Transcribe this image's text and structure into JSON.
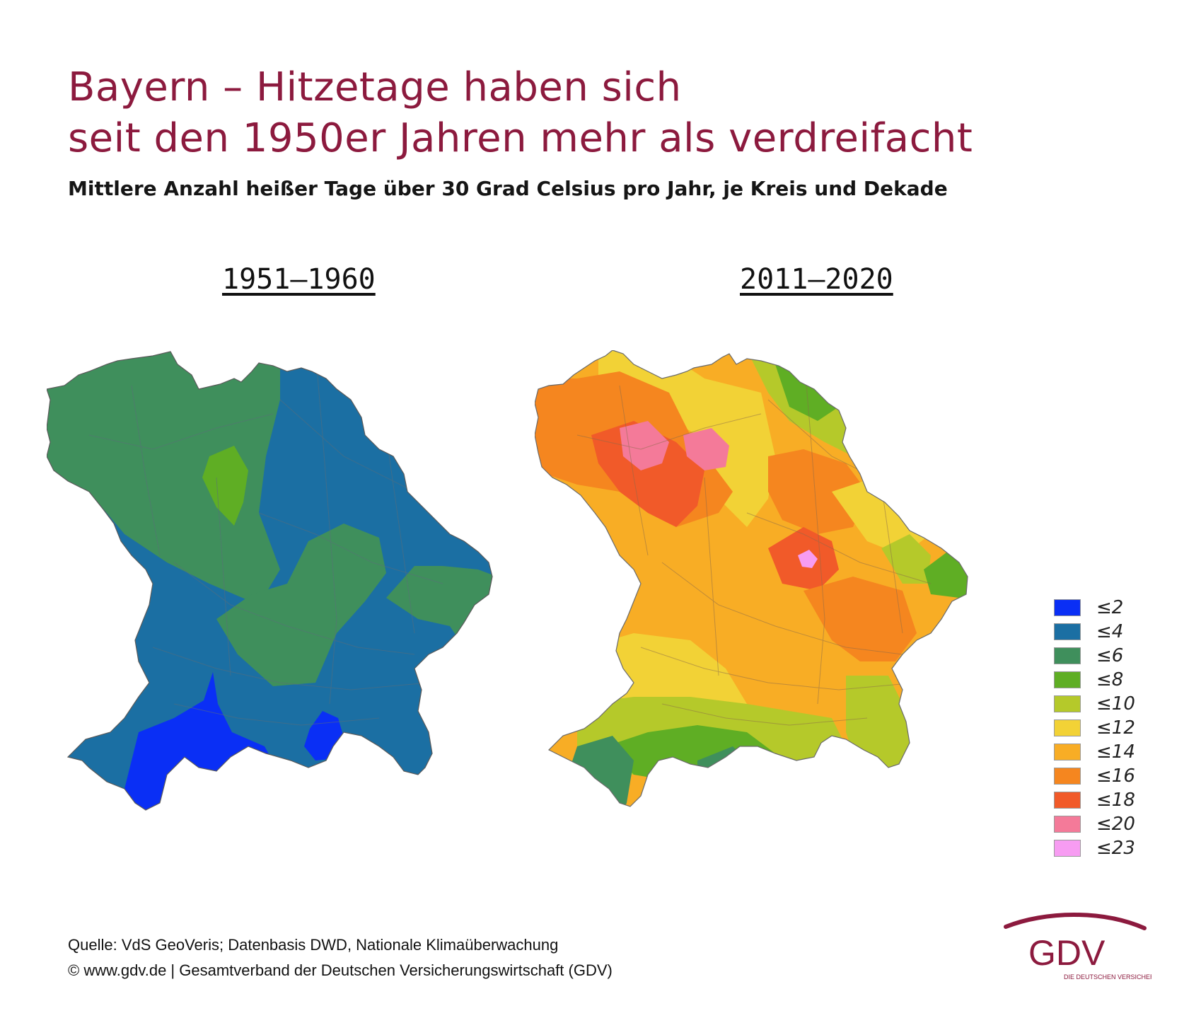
{
  "title": {
    "line1": "Bayern – Hitzetage haben sich",
    "line2": "seit den 1950er Jahren mehr als verdreifacht"
  },
  "subtitle": "Mittlere Anzahl heißer Tage über 30 Grad Celsius pro Jahr, je Kreis und Dekade",
  "maps": [
    {
      "period": "1951–1960"
    },
    {
      "period": "2011–2020"
    }
  ],
  "legend": [
    {
      "label": "≤2",
      "color": "#0a2ff5"
    },
    {
      "label": "≤4",
      "color": "#1b6fa3"
    },
    {
      "label": "≤6",
      "color": "#3f8f5c"
    },
    {
      "label": "≤8",
      "color": "#5fae24"
    },
    {
      "label": "≤10",
      "color": "#b5c92a"
    },
    {
      "label": "≤12",
      "color": "#f2d236"
    },
    {
      "label": "≤14",
      "color": "#f8ad25"
    },
    {
      "label": "≤16",
      "color": "#f5861f"
    },
    {
      "label": "≤18",
      "color": "#f15a29"
    },
    {
      "label": "≤20",
      "color": "#f47a99"
    },
    {
      "label": "≤23",
      "color": "#f79cf2"
    }
  ],
  "footer": {
    "source": "Quelle: VdS GeoVeris; Datenbasis DWD, Nationale Klimaüberwachung",
    "copyright": "© www.gdv.de | Gesamtverband der Deutschen Versicherungswirtschaft (GDV)"
  },
  "logo": {
    "text": "GDV",
    "tagline": "DIE DEUTSCHEN VERSICHERER",
    "color": "#8c1a3e"
  }
}
